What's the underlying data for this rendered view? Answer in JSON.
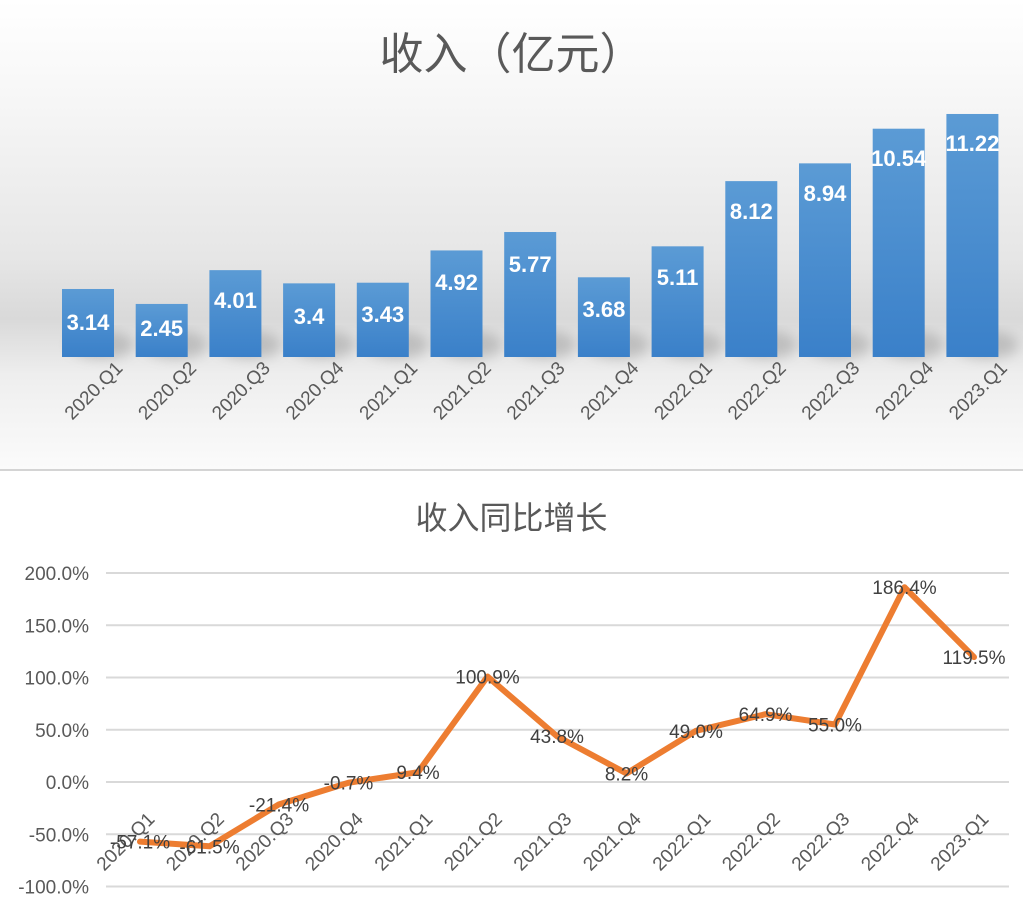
{
  "chart_data": [
    {
      "type": "bar",
      "title": "收入（亿元）",
      "xlabel": "",
      "ylabel": "",
      "categories": [
        "2020.Q1",
        "2020.Q2",
        "2020.Q3",
        "2020.Q4",
        "2021.Q1",
        "2021.Q2",
        "2021.Q3",
        "2021.Q4",
        "2022.Q1",
        "2022.Q2",
        "2022.Q3",
        "2022.Q4",
        "2023.Q1"
      ],
      "values": [
        3.14,
        2.45,
        4.01,
        3.4,
        3.43,
        4.92,
        5.77,
        3.68,
        5.11,
        8.12,
        8.94,
        10.54,
        11.22
      ],
      "data_labels": [
        "3.14",
        "2.45",
        "4.01",
        "3.4",
        "3.43",
        "4.92",
        "5.77",
        "3.68",
        "5.11",
        "8.12",
        "8.94",
        "10.54",
        "11.22"
      ],
      "grid": false,
      "legend": "none",
      "bar_color": "#4a8fd4"
    },
    {
      "type": "line",
      "title": "收入同比增长",
      "xlabel": "",
      "ylabel": "",
      "categories": [
        "2020.Q1",
        "2020.Q2",
        "2020.Q3",
        "2020.Q4",
        "2021.Q1",
        "2021.Q2",
        "2021.Q3",
        "2021.Q4",
        "2022.Q1",
        "2022.Q2",
        "2022.Q3",
        "2022.Q4",
        "2023.Q1"
      ],
      "values": [
        -57.1,
        -61.5,
        -21.4,
        -0.7,
        9.4,
        100.9,
        43.8,
        8.2,
        49.0,
        64.9,
        55.0,
        186.4,
        119.5
      ],
      "data_labels": [
        "-57.1%",
        "-61.5%",
        "-21.4%",
        "-0.7%",
        "9.4%",
        "100.9%",
        "43.8%",
        "8.2%",
        "49.0%",
        "64.9%",
        "55.0%",
        "186.4%",
        "119.5%"
      ],
      "yticks": [
        "200.0%",
        "150.0%",
        "100.0%",
        "50.0%",
        "0.0%",
        "-50.0%",
        "-100.0%"
      ],
      "ylim": [
        -100,
        200
      ],
      "grid": true,
      "legend": "none",
      "line_color": "#ed7d31"
    }
  ]
}
